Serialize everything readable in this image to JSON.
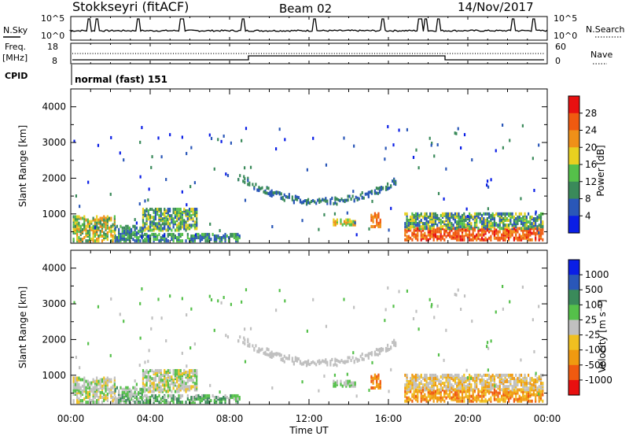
{
  "header": {
    "station": "Stokkseyri (fitACF)",
    "beam": "Beam 02",
    "date": "14/Nov/2017"
  },
  "status_panel": {
    "nsky_label": "N.Sky",
    "nsky_ticks": [
      "10^5",
      "10^0"
    ],
    "nsearch_label": "N.Search",
    "nsearch_ticks": [
      "10^5",
      "10^0"
    ],
    "freq_label_1": "Freq.",
    "freq_label_2": "[MHz]",
    "freq_ticks": [
      "18",
      "8"
    ],
    "nave_label": "Nave",
    "nave_ticks": [
      "60",
      "0"
    ],
    "cpid_label": "CPID",
    "cpid_value": "normal (fast) 151"
  },
  "colors": {
    "power_scale": [
      "#0a1ee6",
      "#2a57b8",
      "#3a8a5a",
      "#55c04a",
      "#e8d020",
      "#f09018",
      "#f05a10",
      "#e81010"
    ],
    "velocity_scale": [
      "#e81010",
      "#f05a10",
      "#f09a10",
      "#f0c020",
      "#c0c0c0",
      "#55c04a",
      "#3a8a5a",
      "#2a57b8",
      "#0a1ee6"
    ]
  },
  "chart_data": [
    {
      "type": "heatmap",
      "name": "power",
      "ylabel": "Slant Range [km]",
      "yticks": [
        "4000",
        "3000",
        "2000",
        "1000"
      ],
      "ylim": [
        180,
        4500
      ],
      "xlim": [
        0,
        24
      ],
      "colorbar_label": "Power [dB]",
      "colorbar_ticks": [
        "28",
        "24",
        "20",
        "16",
        "12",
        "8",
        "4"
      ],
      "colorbar_range": [
        0,
        32
      ]
    },
    {
      "type": "heatmap",
      "name": "velocity",
      "xlabel": "Time UT",
      "xticks": [
        "00:00",
        "04:00",
        "08:00",
        "12:00",
        "16:00",
        "20:00",
        "00:00"
      ],
      "ylabel": "Slant Range [km]",
      "yticks": [
        "4000",
        "3000",
        "2000",
        "1000"
      ],
      "ylim": [
        180,
        4500
      ],
      "xlim": [
        0,
        24
      ],
      "colorbar_label": "Velocity [m s⁻¹]",
      "colorbar_ticks": [
        "1000",
        "500",
        "100",
        "25",
        "-25",
        "-100",
        "-500",
        "-1000"
      ]
    }
  ]
}
